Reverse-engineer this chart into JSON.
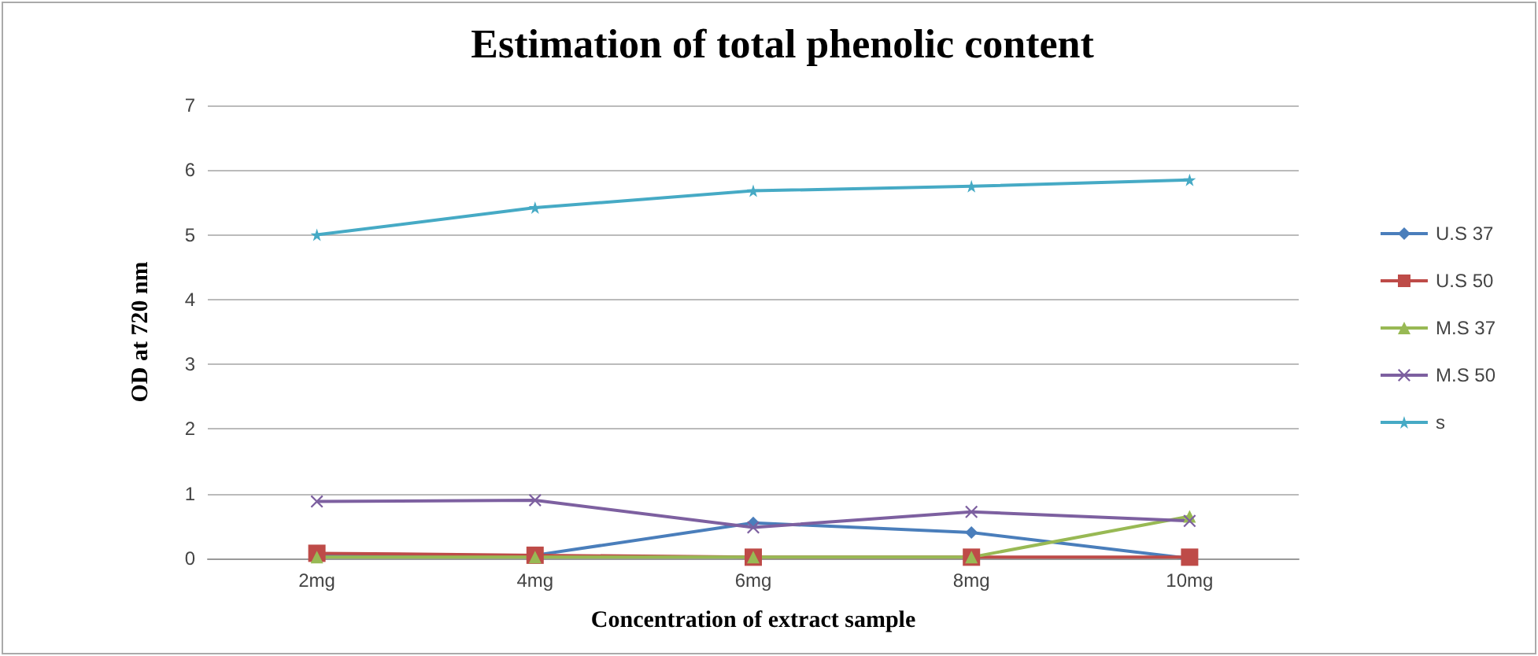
{
  "chart_data": {
    "type": "line",
    "title": "Estimation of total phenolic content",
    "xlabel": "Concentration of extract sample",
    "ylabel": "OD at 720 nm",
    "categories": [
      "2mg",
      "4mg",
      "6mg",
      "8mg",
      "10mg"
    ],
    "series": [
      {
        "name": "U.S 37",
        "color": "#4a7ebb",
        "marker": "diamond",
        "values": [
          0.05,
          0.05,
          0.55,
          0.4,
          0.0
        ]
      },
      {
        "name": "U.S 50",
        "color": "#be4b48",
        "marker": "square",
        "values": [
          0.08,
          0.05,
          0.02,
          0.02,
          0.02
        ]
      },
      {
        "name": "M.S 37",
        "color": "#98b954",
        "marker": "triangle",
        "values": [
          0.02,
          0.02,
          0.02,
          0.02,
          0.65
        ]
      },
      {
        "name": "M.S 50",
        "color": "#7d60a0",
        "marker": "cross",
        "values": [
          0.88,
          0.9,
          0.48,
          0.72,
          0.58
        ]
      },
      {
        "name": "s",
        "color": "#46aac5",
        "marker": "star",
        "values": [
          5.0,
          5.42,
          5.68,
          5.75,
          5.85
        ]
      }
    ],
    "ylim": [
      0,
      7
    ],
    "yticks": [
      0,
      1,
      2,
      3,
      4,
      5,
      6,
      7
    ],
    "grid": "y",
    "legend": "right"
  }
}
